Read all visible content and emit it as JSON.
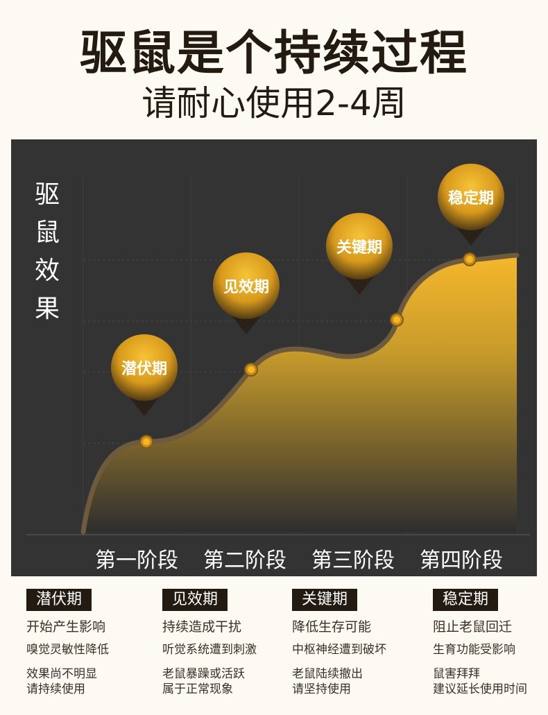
{
  "header": {
    "title": "驱鼠是个持续过程",
    "subtitle": "请耐心使用2-4周"
  },
  "chart_data": {
    "type": "area",
    "ylabel_chars": [
      "驱",
      "鼠",
      "效",
      "果"
    ],
    "categories": [
      "第一阶段",
      "第二阶段",
      "第三阶段",
      "第四阶段"
    ],
    "markers": [
      {
        "label": "潜伏期",
        "level": 0.2
      },
      {
        "label": "见效期",
        "level": 0.37
      },
      {
        "label": "关键期",
        "level": 0.49
      },
      {
        "label": "稳定期",
        "level": 0.6
      }
    ],
    "colors": {
      "panel": "#333333",
      "fill_top": "#f5b72c",
      "fill_bottom": "#2e2e2e",
      "line": "#6e5a3c",
      "dot": "#f8b722"
    }
  },
  "stages": [
    {
      "tag": "潜伏期",
      "line1": "开始产生影响",
      "line2": "嗅觉灵敏性降低",
      "line3": "效果尚不明显",
      "line4": "请持续使用"
    },
    {
      "tag": "见效期",
      "line1": "持续造成干扰",
      "line2": "听觉系统遭到刺激",
      "line3": "老鼠暴躁或活跃",
      "line4": "属于正常现象"
    },
    {
      "tag": "关键期",
      "line1": "降低生存可能",
      "line2": "中枢神经遭到破坏",
      "line3": "老鼠陆续撤出",
      "line4": "请坚持使用"
    },
    {
      "tag": "稳定期",
      "line1": "阻止老鼠回迁",
      "line2": "生育功能受影响",
      "line3": "鼠害拜拜",
      "line4": "建议延长使用时间"
    }
  ]
}
